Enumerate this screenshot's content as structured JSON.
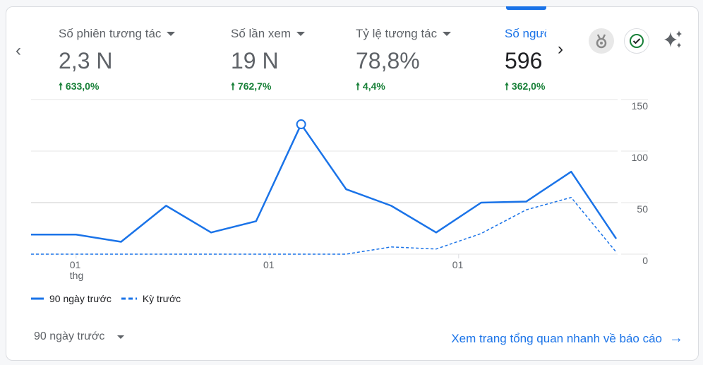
{
  "metrics": [
    {
      "label": "Số phiên tương tác",
      "value": "2,3 N",
      "change": "633,0%",
      "active": false
    },
    {
      "label": "Số lần xem",
      "value": "19 N",
      "change": "762,7%",
      "active": false
    },
    {
      "label": "Tỷ lệ tương tác",
      "value": "78,8%",
      "change": "4,4%",
      "active": false
    },
    {
      "label": "Số người",
      "value": "596",
      "change": "362,0%",
      "active": true
    }
  ],
  "icons": {
    "prev": "chevron-left-icon",
    "next": "chevron-right-icon",
    "badge": "medal-icon",
    "check": "check-circle-icon",
    "ai": "sparkle-icon"
  },
  "colors": {
    "accent": "#1a73e8",
    "positive": "#188038",
    "text": "#5f6368"
  },
  "chart_data": {
    "type": "line",
    "ylim": [
      0,
      150
    ],
    "yticks": [
      "0",
      "50",
      "100",
      "150"
    ],
    "xtick_labels": [
      {
        "index": 1,
        "label": "01",
        "sub": "thg"
      },
      {
        "index": 5.3,
        "label": "01",
        "sub": ""
      },
      {
        "index": 9.5,
        "label": "01",
        "sub": ""
      }
    ],
    "highlight_index": 6,
    "grid": true,
    "legend_placement": "bottom-left",
    "series": [
      {
        "name": "90 ngày trước",
        "style": "solid",
        "values": [
          19,
          19,
          12,
          47,
          21,
          32,
          126,
          63,
          47,
          21,
          50,
          51,
          80,
          15
        ]
      },
      {
        "name": "Kỳ trước",
        "style": "dashed",
        "values": [
          0,
          0,
          0,
          0,
          0,
          0,
          0,
          0,
          7,
          5,
          20,
          43,
          55,
          2
        ]
      }
    ]
  },
  "footer": {
    "range_label": "90 ngày trước",
    "link_label": "Xem trang tổng quan nhanh về báo cáo"
  }
}
